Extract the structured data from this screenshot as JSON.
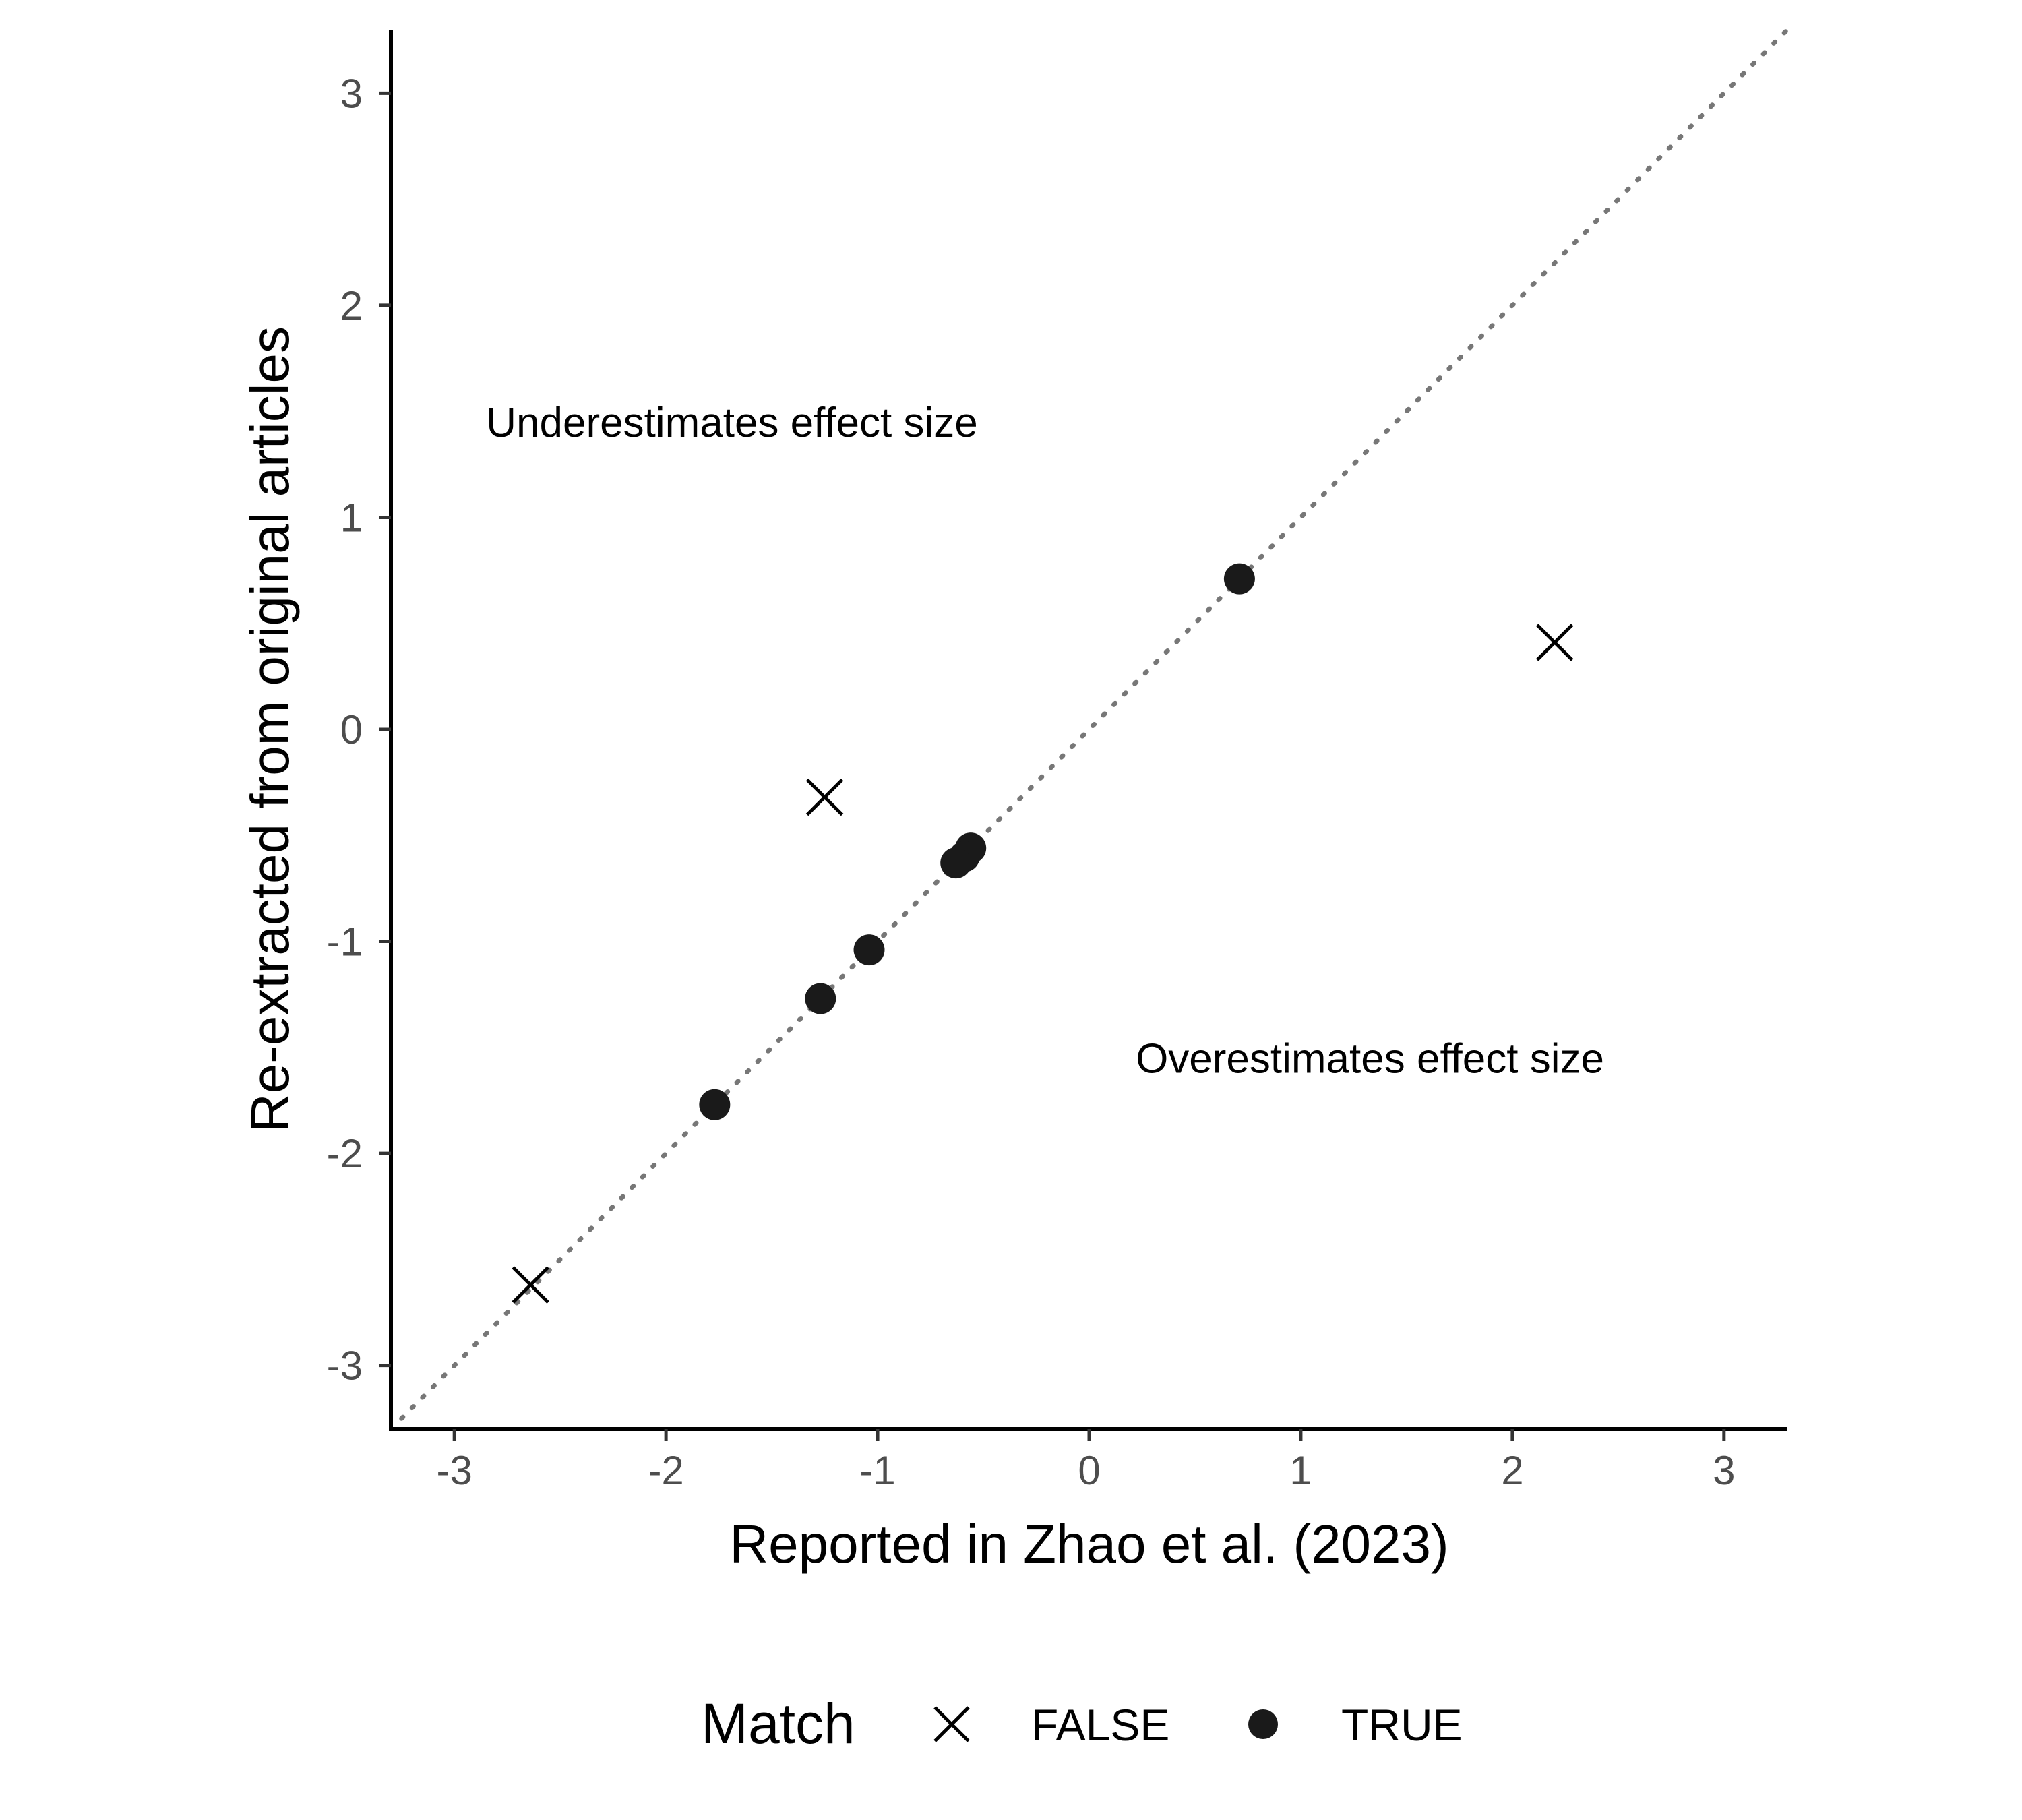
{
  "chart_data": {
    "type": "scatter",
    "title": "",
    "xlabel": "Reported in Zhao et al. (2023)",
    "ylabel": "Re-extracted from original articles",
    "xlim": [
      -3.3,
      3.3
    ],
    "ylim": [
      -3.3,
      3.3
    ],
    "x_ticks": [
      -3,
      -2,
      -1,
      0,
      1,
      2,
      3
    ],
    "y_ticks": [
      -3,
      -2,
      -1,
      0,
      1,
      2,
      3
    ],
    "grid": false,
    "reference_line": {
      "type": "identity",
      "style": "dotted",
      "color": "#777777"
    },
    "annotations": [
      {
        "text": "Underestimates effect size",
        "x": -2.85,
        "y": 1.45
      },
      {
        "text": "Overestimates effect size",
        "x": 0.22,
        "y": -1.55
      }
    ],
    "legend": {
      "title": "Match",
      "position": "bottom",
      "entries": [
        {
          "label": "FALSE",
          "shape": "cross"
        },
        {
          "label": "TRUE",
          "shape": "circle"
        }
      ]
    },
    "series": [
      {
        "name": "FALSE",
        "shape": "cross",
        "color": "#000000",
        "points": [
          {
            "x": 2.2,
            "y": 0.41
          },
          {
            "x": -1.25,
            "y": -0.32
          },
          {
            "x": -2.64,
            "y": -2.62
          }
        ]
      },
      {
        "name": "TRUE",
        "shape": "circle",
        "color": "#1a1a1a",
        "points": [
          {
            "x": 0.71,
            "y": 0.71
          },
          {
            "x": -0.56,
            "y": -0.56
          },
          {
            "x": -0.59,
            "y": -0.6
          },
          {
            "x": -0.63,
            "y": -0.63
          },
          {
            "x": -1.04,
            "y": -1.04
          },
          {
            "x": -1.27,
            "y": -1.27
          },
          {
            "x": -1.77,
            "y": -1.77
          }
        ]
      }
    ]
  }
}
